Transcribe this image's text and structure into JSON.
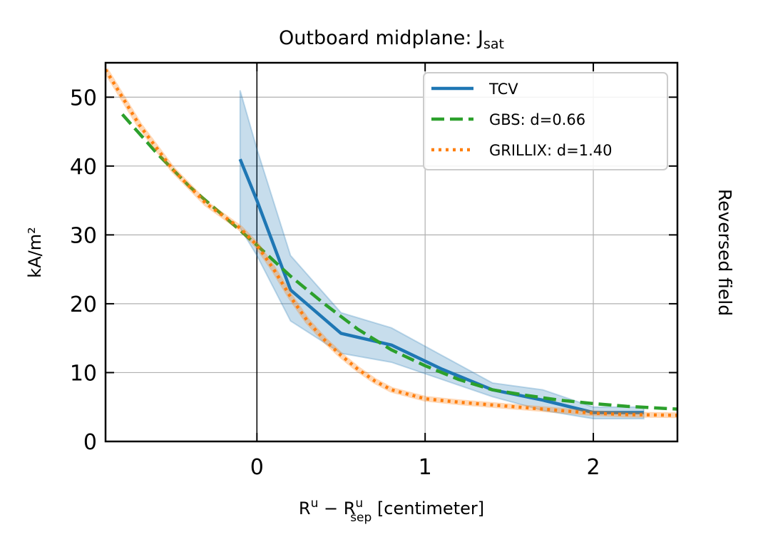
{
  "chart_data": {
    "type": "line",
    "title": "Outboard midplane: J",
    "title_sub": "sat",
    "xlabel": {
      "main1": "R",
      "sup1": "u",
      "minus": " − ",
      "main2": "R",
      "sup2": "u",
      "sub2": "sep",
      "unit": " [centimeter]"
    },
    "ylabel": "kA/m²",
    "right_label": "Reversed field",
    "xlim": [
      -0.9,
      2.5
    ],
    "ylim": [
      0,
      55
    ],
    "xticks": [
      0,
      1,
      2
    ],
    "xtick_labels": [
      "0",
      "1",
      "2"
    ],
    "yticks": [
      0,
      10,
      20,
      30,
      40,
      50
    ],
    "ytick_labels": [
      "0",
      "10",
      "20",
      "30",
      "40",
      "50"
    ],
    "grid": true,
    "separatrix_x": 0,
    "legend_position": "upper-right",
    "series": [
      {
        "name": "TCV",
        "color": "#1f77b4",
        "style": "solid",
        "x": [
          -0.1,
          0.0,
          0.2,
          0.5,
          0.8,
          1.1,
          1.4,
          1.7,
          2.0,
          2.3
        ],
        "y": [
          41,
          35,
          22,
          15.7,
          14,
          10.5,
          7.5,
          6,
          4.2,
          4.2
        ],
        "band_upper": [
          51,
          42.5,
          27,
          18.7,
          16.5,
          12.5,
          8.5,
          7.5,
          5,
          5
        ],
        "band_lower": [
          31,
          27,
          17.5,
          12.8,
          11.5,
          9,
          6.5,
          4.5,
          3.3,
          3.3
        ]
      },
      {
        "name": "GBS: d=0.66",
        "color": "#2ca02c",
        "style": "dashed",
        "x": [
          -0.8,
          -0.6,
          -0.4,
          -0.2,
          0.0,
          0.2,
          0.4,
          0.6,
          0.8,
          1.0,
          1.2,
          1.4,
          1.6,
          1.8,
          2.0,
          2.2,
          2.5
        ],
        "y": [
          47.5,
          42,
          37,
          32.8,
          28.5,
          24,
          20,
          16.3,
          13.3,
          11,
          9,
          7.5,
          6.7,
          6,
          5.5,
          5.1,
          4.7
        ]
      },
      {
        "name": "GRILLIX: d=1.40",
        "color": "#ff7f0e",
        "style": "dotted",
        "x": [
          -0.9,
          -0.7,
          -0.5,
          -0.3,
          -0.1,
          0.0,
          0.1,
          0.2,
          0.3,
          0.4,
          0.5,
          0.6,
          0.7,
          0.8,
          1.0,
          1.2,
          1.4,
          1.6,
          1.8,
          2.0,
          2.2,
          2.5
        ],
        "y": [
          54,
          46,
          39.5,
          34.5,
          31,
          28.5,
          25,
          21,
          17.5,
          14.8,
          12.5,
          10.5,
          8.8,
          7.5,
          6.2,
          5.7,
          5.3,
          4.9,
          4.5,
          4.1,
          3.9,
          3.8
        ]
      }
    ]
  }
}
